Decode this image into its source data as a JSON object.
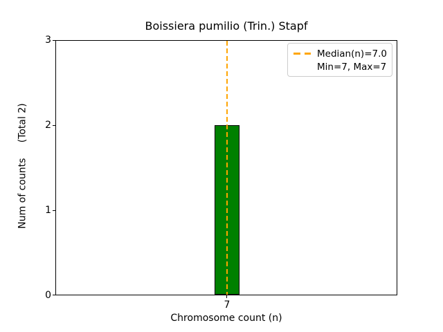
{
  "chart_data": {
    "type": "bar",
    "title": "Boissiera pumilio (Trin.) Stapf",
    "xlabel": "Chromosome count (n)",
    "ylabel": "Num of counts     (Total 2)",
    "categories": [
      "7"
    ],
    "values": [
      2
    ],
    "ylim": [
      0,
      3
    ],
    "yticks": [
      0,
      1,
      2,
      3
    ],
    "xticks": [
      "7"
    ],
    "grid": "off",
    "bar_color": "#008000",
    "bar_edge_color": "#000000",
    "median_line": {
      "x": 7,
      "median_value": 7.0,
      "color": "#FFA500",
      "linestyle": "dashed"
    },
    "legend": {
      "position": "upper right",
      "median_label": "Median(n)=7.0",
      "minmax_label": "Min=7, Max=7"
    }
  }
}
